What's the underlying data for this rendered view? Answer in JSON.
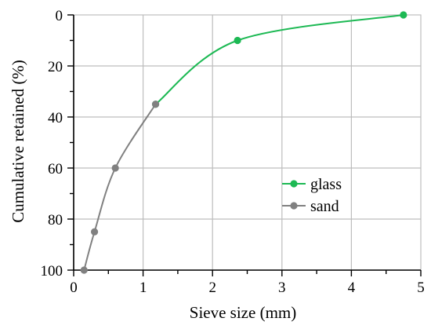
{
  "chart_data": {
    "type": "line",
    "title": "",
    "xlabel": "Sieve size (mm)",
    "ylabel": "Cumulative retained (%)",
    "xlim": [
      0,
      5
    ],
    "ylim": [
      0,
      100
    ],
    "y_inverted": true,
    "x_ticks": [
      0,
      1,
      2,
      3,
      4,
      5
    ],
    "y_ticks": [
      0,
      20,
      40,
      60,
      80,
      100
    ],
    "grid": true,
    "legend_position": "right-middle",
    "series": [
      {
        "name": "glass",
        "color": "#1db954",
        "x": [
          1.18,
          2.36,
          4.75
        ],
        "y": [
          35,
          10,
          0
        ]
      },
      {
        "name": "sand",
        "color": "#808080",
        "x": [
          0.15,
          0.3,
          0.6,
          1.18
        ],
        "y": [
          100,
          85,
          60,
          35
        ]
      }
    ]
  }
}
